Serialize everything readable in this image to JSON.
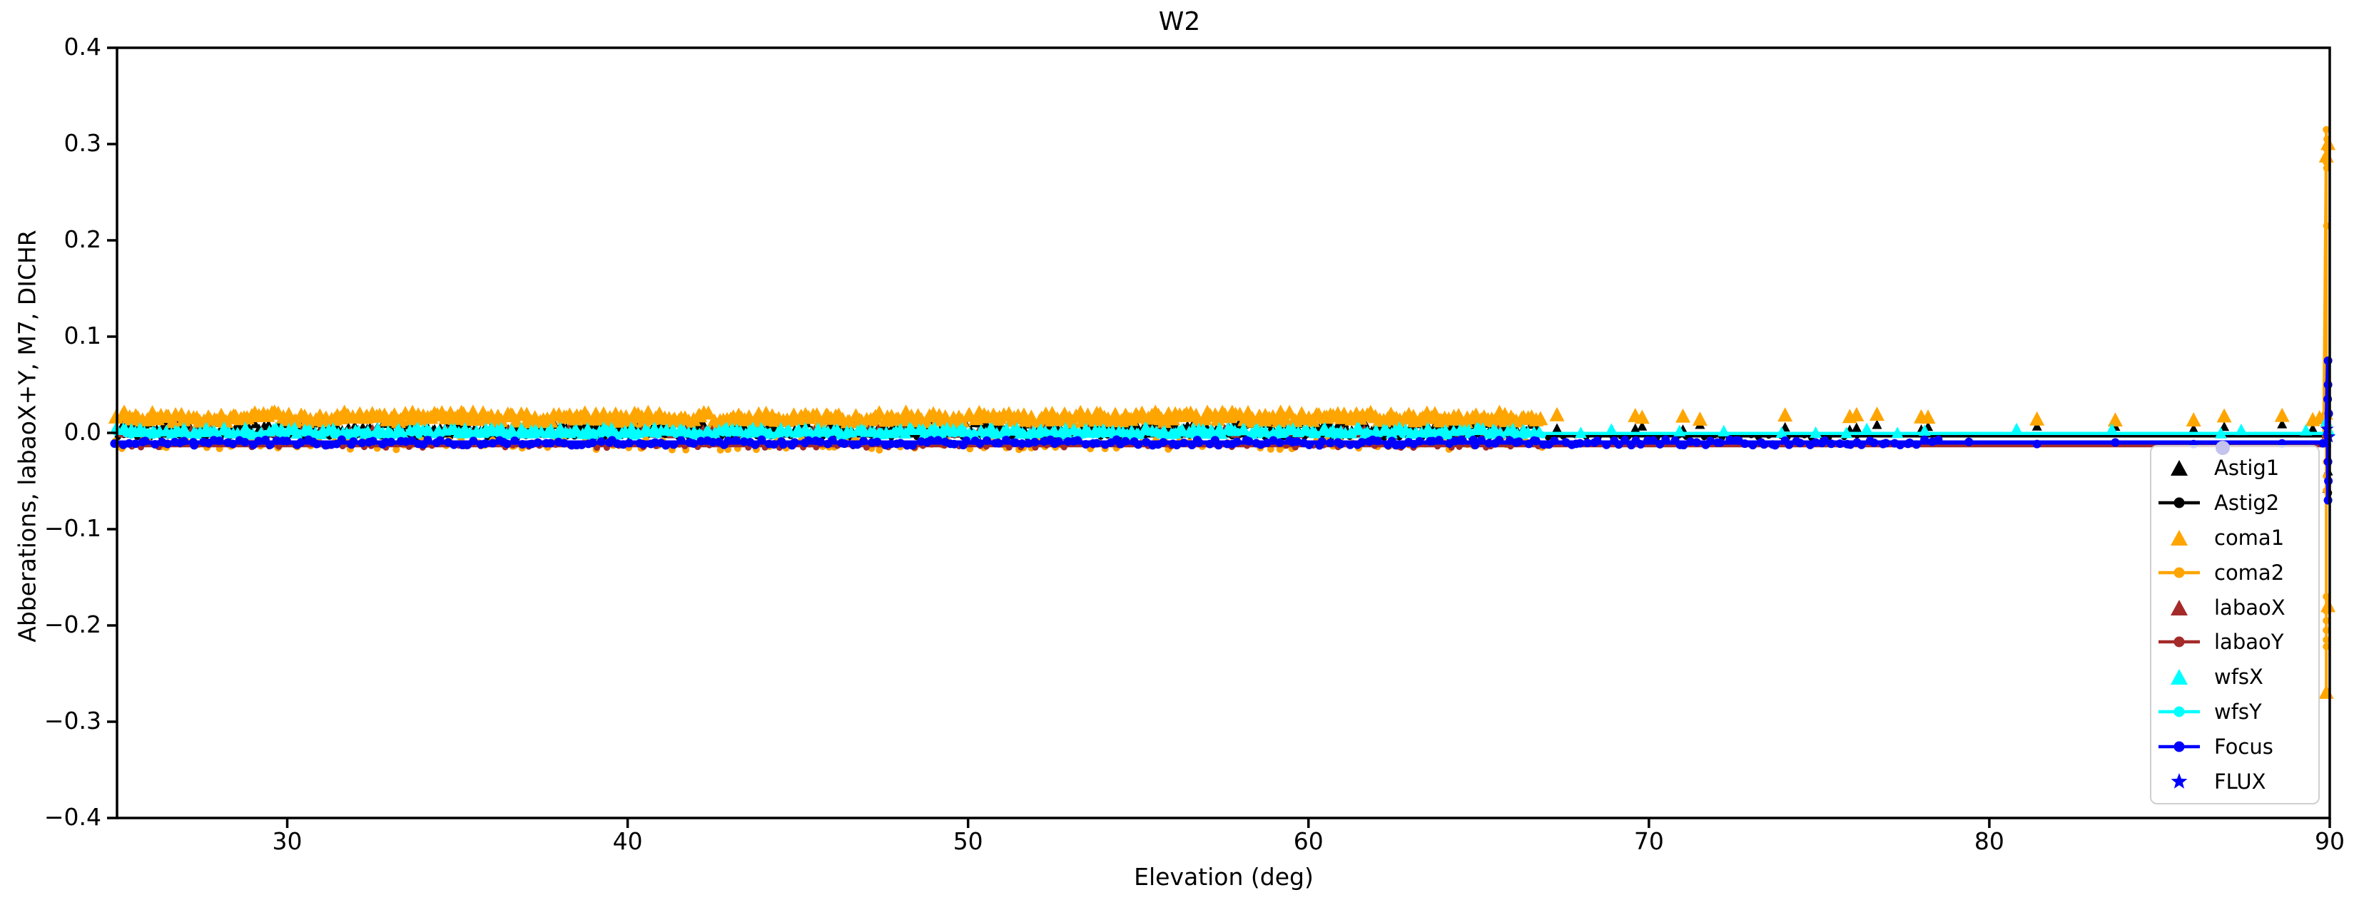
{
  "chart_data": {
    "type": "scatter",
    "title": "W2",
    "xlabel": "Elevation (deg)",
    "ylabel": "Abberations, labaoX+Y, M7, DICHR",
    "xlim": [
      25,
      90
    ],
    "ylim": [
      -0.4,
      0.4
    ],
    "grid": false,
    "legend_position": "lower right",
    "xticks": [
      {
        "v": 30,
        "label": "30"
      },
      {
        "v": 40,
        "label": "40"
      },
      {
        "v": 50,
        "label": "50"
      },
      {
        "v": 60,
        "label": "60"
      },
      {
        "v": 70,
        "label": "70"
      },
      {
        "v": 80,
        "label": "80"
      },
      {
        "v": 90,
        "label": "90"
      }
    ],
    "yticks": [
      {
        "v": 0.4,
        "label": "0.4"
      },
      {
        "v": 0.3,
        "label": "0.3"
      },
      {
        "v": 0.2,
        "label": "0.2"
      },
      {
        "v": 0.1,
        "label": "0.1"
      },
      {
        "v": 0.0,
        "label": "0.0"
      },
      {
        "v": -0.1,
        "label": "−0.1"
      },
      {
        "v": -0.2,
        "label": "−0.2"
      },
      {
        "v": -0.3,
        "label": "−0.3"
      },
      {
        "v": -0.4,
        "label": "−0.4"
      }
    ],
    "series": [
      {
        "name": "Astig1",
        "color": "#000000",
        "marker": "triangle",
        "marker_size": 14,
        "line": null,
        "dense": {
          "x_start": 25,
          "x_end": 66.8,
          "x_step": 0.12,
          "y_center": 0.006,
          "y_spread": 0.0045
        },
        "sparse_x": [
          67.3,
          69.6,
          69.8,
          71.0,
          71.5,
          74.0,
          75.9,
          76.1,
          76.7,
          78.0,
          78.2,
          81.4,
          83.7,
          86.0,
          86.9,
          88.6,
          89.5
        ],
        "edge_points": [
          [
            89.93,
            -0.058
          ],
          [
            89.9,
            0.02
          ],
          [
            89.95,
            -0.04
          ]
        ]
      },
      {
        "name": "Astig2",
        "color": "#000000",
        "marker": "dot",
        "marker_size": 4.5,
        "line": {
          "width": 3.5,
          "points": [
            [
              25,
              -0.0035
            ],
            [
              89.93,
              -0.0035
            ],
            [
              89.96,
              0.02
            ],
            [
              89.96,
              -0.065
            ]
          ]
        },
        "dense": {
          "x_start": 25,
          "x_end": 76.0,
          "x_step": 0.3,
          "y_center": -0.0035,
          "y_spread": 0.0015
        },
        "sparse_x": [],
        "edge_points": [
          [
            89.95,
            -0.05
          ],
          [
            89.97,
            -0.063
          ]
        ]
      },
      {
        "name": "coma1",
        "color": "#FFA500",
        "marker": "triangle",
        "marker_size": 21,
        "line": null,
        "dense": {
          "x_start": 25,
          "x_end": 66.8,
          "x_step": 0.11,
          "y_center": 0.016,
          "y_spread": 0.005
        },
        "sparse_x": [
          67.3,
          69.6,
          69.8,
          71.0,
          71.5,
          74.0,
          75.9,
          76.1,
          76.7,
          78.0,
          78.2,
          81.4,
          83.7,
          86.0,
          86.9,
          88.6,
          89.5,
          89.7
        ],
        "edge_points": [
          [
            89.95,
            0.3
          ],
          [
            89.9,
            0.287
          ],
          [
            89.95,
            -0.18
          ],
          [
            89.9,
            -0.27
          ],
          [
            89.88,
            0.02
          ]
        ]
      },
      {
        "name": "coma2",
        "color": "#FFA500",
        "marker": "dot",
        "marker_size": 5,
        "line": {
          "width": 4,
          "points": [
            [
              25,
              -0.012
            ],
            [
              89.82,
              -0.012
            ],
            [
              89.9,
              0.315
            ],
            [
              89.9,
              -0.27
            ]
          ]
        },
        "dense": {
          "x_start": 25,
          "x_end": 67.2,
          "x_step": 0.24,
          "y_center": -0.012,
          "y_spread": 0.006
        },
        "sparse_x": [],
        "edge_points": [
          [
            89.9,
            0.315
          ],
          [
            89.92,
            0.305
          ],
          [
            89.9,
            0.295
          ],
          [
            89.93,
            0.289
          ],
          [
            89.9,
            0.281
          ],
          [
            89.91,
            0.275
          ],
          [
            89.91,
            0.215
          ],
          [
            89.9,
            0.05
          ],
          [
            89.9,
            0.01
          ],
          [
            89.9,
            -0.03
          ],
          [
            89.9,
            -0.045
          ],
          [
            89.9,
            -0.06
          ],
          [
            89.9,
            -0.17
          ],
          [
            89.9,
            -0.185
          ],
          [
            89.9,
            -0.195
          ],
          [
            89.9,
            -0.205
          ],
          [
            89.9,
            -0.215
          ],
          [
            89.9,
            -0.222
          ]
        ]
      },
      {
        "name": "labaoX",
        "color": "#A52A2A",
        "marker": "triangle",
        "marker_size": 13,
        "line": null,
        "dense": {
          "x_start": 25,
          "x_end": 66.5,
          "x_step": 0.4,
          "y_center": 0.001,
          "y_spread": 0.003
        },
        "sparse_x": [],
        "edge_points": [
          [
            89.9,
            -0.002
          ]
        ]
      },
      {
        "name": "labaoY",
        "color": "#A52A2A",
        "marker": "dot",
        "marker_size": 4.5,
        "line": {
          "width": 4,
          "points": [
            [
              25,
              -0.0135
            ],
            [
              90,
              -0.0135
            ]
          ]
        },
        "dense": {
          "x_start": 25,
          "x_end": 67.0,
          "x_step": 0.45,
          "y_center": -0.0135,
          "y_spread": 0.002
        },
        "sparse_x": [],
        "edge_points": []
      },
      {
        "name": "wfsX",
        "color": "#00FFFF",
        "marker": "triangle",
        "marker_size": 17,
        "line": null,
        "dense": {
          "x_start": 25,
          "x_end": 66.8,
          "x_step": 0.13,
          "y_center": 0.0015,
          "y_spread": 0.0035
        },
        "sparse_x": [
          68.0,
          68.9,
          70.9,
          72.2,
          73.9,
          74.9,
          75.8,
          76.4,
          77.3,
          78.1,
          80.8,
          83.6,
          86.8,
          87.4,
          89.3
        ],
        "edge_points": [
          [
            89.9,
            0.012
          ],
          [
            89.98,
            0.002
          ]
        ]
      },
      {
        "name": "wfsY",
        "color": "#00FFFF",
        "marker": "dot",
        "marker_size": 5,
        "line": {
          "width": 4.5,
          "points": [
            [
              25,
              -0.0005
            ],
            [
              89.9,
              -0.0005
            ],
            [
              89.95,
              0.012
            ],
            [
              89.95,
              -0.01
            ]
          ]
        },
        "dense": {
          "x_start": 25,
          "x_end": 67.0,
          "x_step": 0.2,
          "y_center": -0.0005,
          "y_spread": 0.002
        },
        "sparse_x": [],
        "edge_points": []
      },
      {
        "name": "Focus",
        "color": "#0000FF",
        "marker": "dot",
        "marker_size": 6,
        "line": {
          "width": 6,
          "points": [
            [
              25,
              -0.01
            ],
            [
              89.9,
              -0.01
            ],
            [
              89.95,
              0.075
            ],
            [
              89.95,
              -0.07
            ]
          ]
        },
        "dense": {
          "x_start": 25,
          "x_end": 78.5,
          "x_step": 0.18,
          "y_center": -0.01,
          "y_spread": 0.003
        },
        "sparse_x": [
          79.4,
          81.4,
          83.7,
          86.0,
          88.6,
          89.8
        ],
        "edge_points": [
          [
            89.95,
            0.075
          ],
          [
            89.95,
            0.05
          ],
          [
            89.97,
            0.02
          ],
          [
            89.94,
            0.035
          ],
          [
            89.95,
            -0.03
          ],
          [
            89.96,
            -0.05
          ],
          [
            89.95,
            -0.07
          ]
        ]
      },
      {
        "name": "FLUX",
        "color": "#0000FF",
        "marker": "star",
        "marker_size": 10,
        "line": null,
        "dense": null,
        "sparse_x": [],
        "edge_points": [
          [
            89.92,
            0.004
          ],
          [
            89.97,
            -0.004
          ]
        ]
      }
    ],
    "outlier_dot": {
      "x": 86.85,
      "y": -0.0155,
      "color": "#c3c3ee"
    }
  },
  "legend": {
    "items": [
      {
        "label": "Astig1",
        "marker": "triangle",
        "color": "#000000"
      },
      {
        "label": "Astig2",
        "marker": "line-dot",
        "color": "#000000"
      },
      {
        "label": "coma1",
        "marker": "triangle",
        "color": "#FFA500"
      },
      {
        "label": "coma2",
        "marker": "line-dot",
        "color": "#FFA500"
      },
      {
        "label": "labaoX",
        "marker": "triangle",
        "color": "#A52A2A"
      },
      {
        "label": "labaoY",
        "marker": "line-dot",
        "color": "#A52A2A"
      },
      {
        "label": "wfsX",
        "marker": "triangle",
        "color": "#00FFFF"
      },
      {
        "label": "wfsY",
        "marker": "line-dot",
        "color": "#00FFFF"
      },
      {
        "label": "Focus",
        "marker": "line-dot",
        "color": "#0000FF"
      },
      {
        "label": "FLUX",
        "marker": "star",
        "color": "#0000FF"
      }
    ]
  }
}
